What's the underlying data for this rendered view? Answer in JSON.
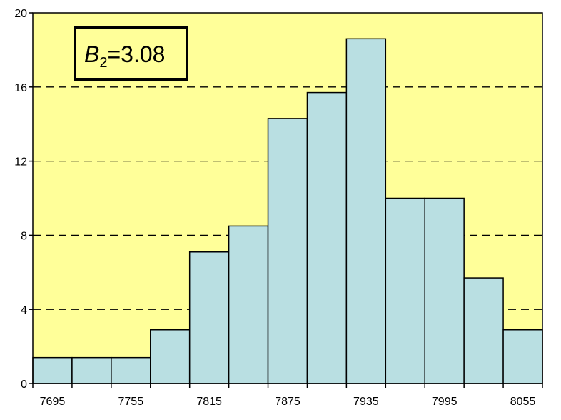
{
  "chart_data": {
    "type": "bar",
    "title": "",
    "xlabel": "",
    "ylabel": "",
    "bins": [
      {
        "start": 7680,
        "end": 7710,
        "value": 1.4
      },
      {
        "start": 7710,
        "end": 7740,
        "value": 1.4
      },
      {
        "start": 7740,
        "end": 7770,
        "value": 1.4
      },
      {
        "start": 7770,
        "end": 7800,
        "value": 2.9
      },
      {
        "start": 7800,
        "end": 7830,
        "value": 7.1
      },
      {
        "start": 7830,
        "end": 7860,
        "value": 8.5
      },
      {
        "start": 7860,
        "end": 7890,
        "value": 14.3
      },
      {
        "start": 7890,
        "end": 7920,
        "value": 15.7
      },
      {
        "start": 7920,
        "end": 7950,
        "value": 18.6
      },
      {
        "start": 7950,
        "end": 7980,
        "value": 10.0
      },
      {
        "start": 7980,
        "end": 8010,
        "value": 10.0
      },
      {
        "start": 8010,
        "end": 8040,
        "value": 5.7
      },
      {
        "start": 8040,
        "end": 8070,
        "value": 2.9
      }
    ],
    "xlim": [
      7680,
      8070
    ],
    "ylim": [
      0,
      20
    ],
    "x_ticks": [
      "7695",
      "7755",
      "7815",
      "7875",
      "7935",
      "7995",
      "8055"
    ],
    "x_tick_values": [
      7695,
      7755,
      7815,
      7875,
      7935,
      7995,
      8055
    ],
    "y_ticks": [
      "0",
      "4",
      "8",
      "12",
      "16",
      "20"
    ],
    "y_tick_values": [
      0,
      4,
      8,
      12,
      16,
      20
    ],
    "grid": "dashed horizontal at 4, 8, 12, 16",
    "annotation": {
      "symbol": "B",
      "subscript": "2",
      "text": "=3.08",
      "placement": "top-left"
    },
    "colors": {
      "plot_background": "#ffff99",
      "bar_fill": "#b9dfe2",
      "bar_edge": "#000000",
      "grid": "#000000"
    }
  }
}
